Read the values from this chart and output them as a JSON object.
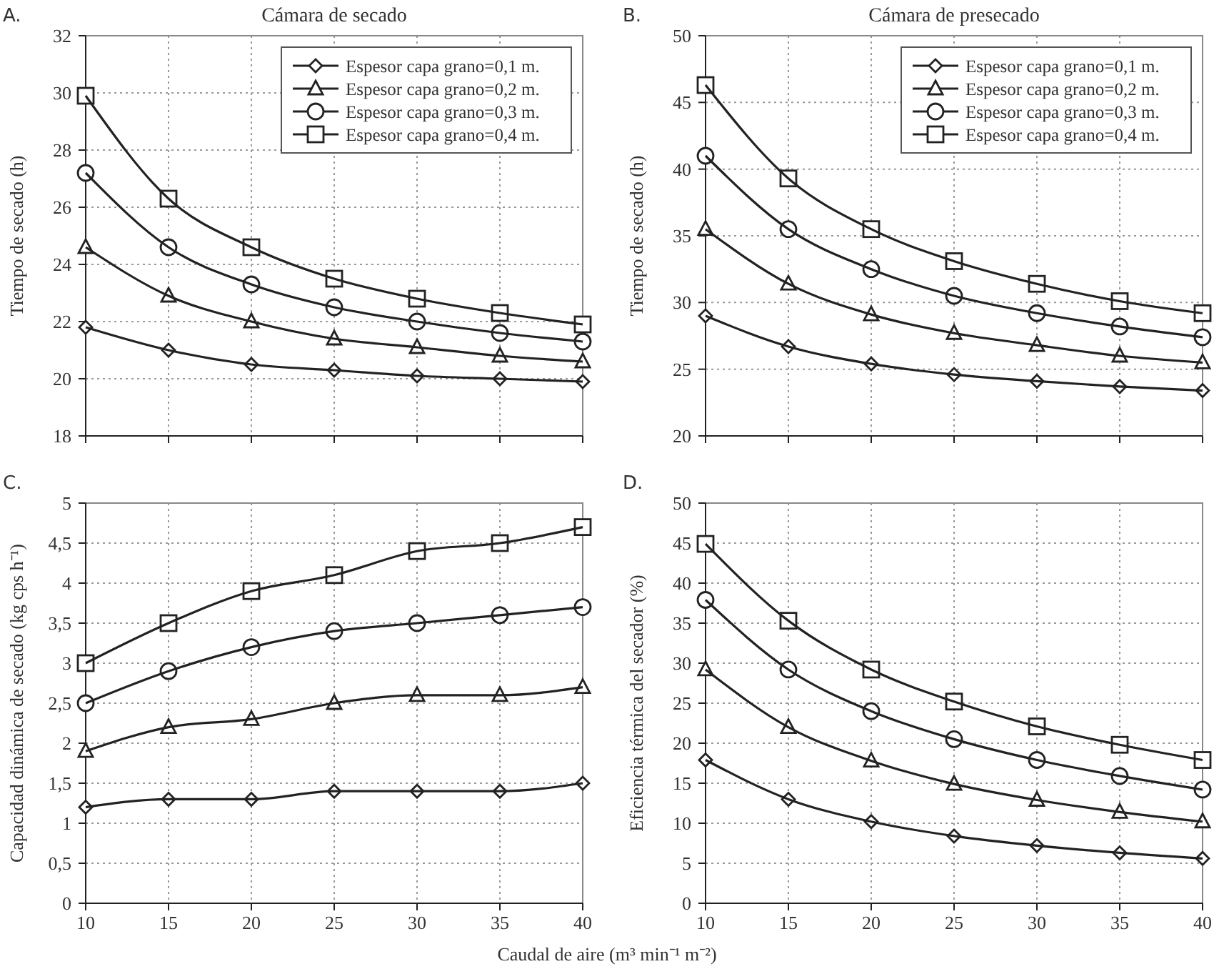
{
  "chart_data": [
    {
      "type": "line",
      "title": "Cámara de secado",
      "ylabel": "Tiempo de secado (h)",
      "annotations": [
        "A."
      ],
      "x": [
        10,
        15,
        20,
        25,
        30,
        35,
        40
      ],
      "xlim": [
        10,
        40
      ],
      "xticks": [
        10,
        15,
        20,
        25,
        30,
        35,
        40
      ],
      "ylim": [
        18,
        32
      ],
      "yticks": [
        18,
        20,
        22,
        24,
        26,
        28,
        30,
        32
      ],
      "grid": true,
      "legend": "top right",
      "tick_labels": "y",
      "line_style": "solid",
      "series": [
        {
          "name": "Espesor capa grano=0,1 m.",
          "color": "#222222",
          "marker": "diamond",
          "values": [
            21.8,
            21.0,
            20.5,
            20.3,
            20.1,
            20.0,
            19.9
          ]
        },
        {
          "name": "Espesor capa grano=0,2 m.",
          "color": "#222222",
          "marker": "triangle",
          "values": [
            24.6,
            22.9,
            22.0,
            21.4,
            21.1,
            20.8,
            20.6
          ]
        },
        {
          "name": "Espesor capa grano=0,3 m.",
          "color": "#222222",
          "marker": "circle",
          "values": [
            27.2,
            24.6,
            23.3,
            22.5,
            22.0,
            21.6,
            21.3
          ]
        },
        {
          "name": "Espesor capa grano=0,4 m.",
          "color": "#222222",
          "marker": "square",
          "values": [
            29.9,
            26.3,
            24.6,
            23.5,
            22.8,
            22.3,
            21.9
          ]
        }
      ]
    },
    {
      "type": "line",
      "title": "Cámara de presecado",
      "ylabel": "Tiempo de secado (h)",
      "annotations": [
        "B."
      ],
      "x": [
        10,
        15,
        20,
        25,
        30,
        35,
        40
      ],
      "xlim": [
        10,
        40
      ],
      "xticks": [
        10,
        15,
        20,
        25,
        30,
        35,
        40
      ],
      "ylim": [
        20,
        50
      ],
      "yticks": [
        20,
        25,
        30,
        35,
        40,
        45,
        50
      ],
      "grid": true,
      "legend": "top right",
      "tick_labels": "y",
      "line_style": "solid",
      "series": [
        {
          "name": "Espesor capa grano=0,1 m.",
          "color": "#222222",
          "marker": "diamond",
          "values": [
            29.0,
            26.7,
            25.4,
            24.6,
            24.1,
            23.7,
            23.4
          ]
        },
        {
          "name": "Espesor capa grano=0,2 m.",
          "color": "#222222",
          "marker": "triangle",
          "values": [
            35.5,
            31.4,
            29.1,
            27.7,
            26.8,
            26.0,
            25.5
          ]
        },
        {
          "name": "Espesor capa grano=0,3 m.",
          "color": "#222222",
          "marker": "circle",
          "values": [
            41.0,
            35.5,
            32.5,
            30.5,
            29.2,
            28.2,
            27.4
          ]
        },
        {
          "name": "Espesor capa grano=0,4 m.",
          "color": "#222222",
          "marker": "square",
          "values": [
            46.3,
            39.3,
            35.5,
            33.1,
            31.4,
            30.1,
            29.2
          ]
        }
      ]
    },
    {
      "type": "line",
      "xlabel": "Caudal de aire (m³ min⁻¹ m⁻²)",
      "ylabel": "Capacidad dinámica de secado (kg cps h⁻¹)",
      "annotations": [
        "C."
      ],
      "x": [
        10,
        15,
        20,
        25,
        30,
        35,
        40
      ],
      "xlim": [
        10,
        40
      ],
      "xticks": [
        10,
        15,
        20,
        25,
        30,
        35,
        40
      ],
      "ylim": [
        0,
        5
      ],
      "yticks": [
        0,
        {
          "value": 0.5,
          "label": "0,5"
        },
        1,
        {
          "value": 1.5,
          "label": "1,5"
        },
        2,
        {
          "value": 2.5,
          "label": "2,5"
        },
        3,
        {
          "value": 3.5,
          "label": "3,5"
        },
        4,
        {
          "value": 4.5,
          "label": "4,5"
        },
        5
      ],
      "grid": true,
      "line_style": "solid",
      "series": [
        {
          "color": "#222222",
          "marker": "diamond",
          "values": [
            1.2,
            1.3,
            1.3,
            1.4,
            1.4,
            1.4,
            1.5
          ]
        },
        {
          "color": "#222222",
          "marker": "triangle",
          "values": [
            1.9,
            2.2,
            2.3,
            2.5,
            2.6,
            2.6,
            2.7
          ]
        },
        {
          "color": "#222222",
          "marker": "circle",
          "values": [
            2.5,
            2.9,
            3.2,
            3.4,
            3.5,
            3.6,
            3.7
          ]
        },
        {
          "color": "#222222",
          "marker": "square",
          "values": [
            3.0,
            3.5,
            3.9,
            4.1,
            4.4,
            4.5,
            4.7
          ]
        }
      ]
    },
    {
      "type": "line",
      "ylabel": "Eficiencia térmica del secador (%)",
      "annotations": [
        "D."
      ],
      "x": [
        10,
        15,
        20,
        25,
        30,
        35,
        40
      ],
      "xlim": [
        10,
        40
      ],
      "xticks": [
        10,
        15,
        20,
        25,
        30,
        35,
        40
      ],
      "ylim": [
        0,
        50
      ],
      "yticks": [
        0,
        5,
        10,
        15,
        20,
        25,
        30,
        35,
        40,
        45,
        50
      ],
      "grid": true,
      "line_style": "solid",
      "series": [
        {
          "color": "#222222",
          "marker": "diamond",
          "values": [
            17.9,
            13.0,
            10.2,
            8.4,
            7.2,
            6.3,
            5.6
          ]
        },
        {
          "color": "#222222",
          "marker": "triangle",
          "values": [
            29.2,
            22.0,
            17.8,
            14.9,
            12.9,
            11.4,
            10.2
          ]
        },
        {
          "color": "#222222",
          "marker": "circle",
          "values": [
            37.9,
            29.2,
            24.0,
            20.5,
            17.9,
            15.9,
            14.2
          ]
        },
        {
          "color": "#222222",
          "marker": "square",
          "values": [
            44.9,
            35.3,
            29.2,
            25.2,
            22.1,
            19.8,
            17.9
          ]
        }
      ]
    }
  ]
}
